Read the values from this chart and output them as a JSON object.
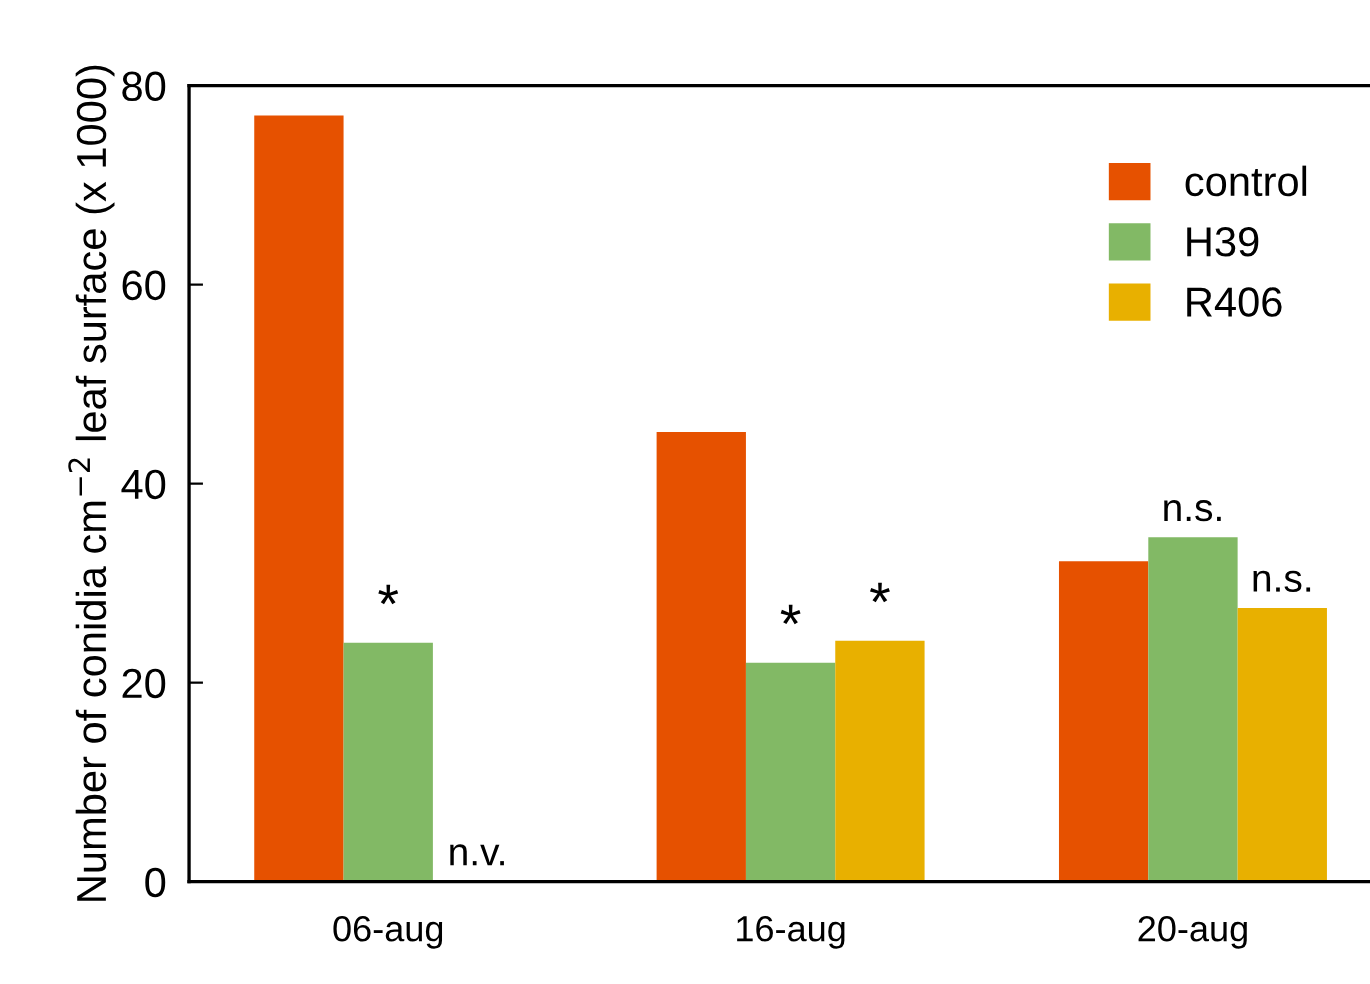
{
  "chart_data": {
    "type": "bar",
    "ylabel": "Number of conidia cm$^{−2}$ leaf surface (x 1000)",
    "categories": [
      "06-aug",
      "16-aug",
      "20-aug"
    ],
    "series": [
      {
        "name": "control",
        "color": "#e65100",
        "values": [
          77,
          45.2,
          32.2
        ]
      },
      {
        "name": "H39",
        "color": "#82b965",
        "values": [
          24,
          22,
          34.6
        ],
        "value_labels": [
          "*",
          "*",
          "n.s."
        ]
      },
      {
        "name": "R406",
        "color": "#e8b000",
        "values": [
          null,
          24.2,
          27.5
        ],
        "value_labels": [
          "n.v.",
          "*",
          "n.s."
        ]
      }
    ],
    "ylim": [
      0,
      80
    ],
    "yticks": [
      0,
      20,
      40,
      60,
      80
    ],
    "grid": false,
    "legend": "top right"
  }
}
